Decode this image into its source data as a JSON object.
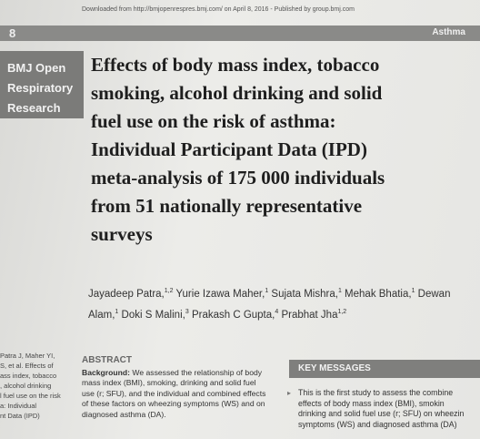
{
  "header": {
    "download_note": "Downloaded from http://bmjopenrespres.bmj.com/ on April 8, 2016 - Published by group.bmj.com",
    "logo": "8",
    "section": "Asthma"
  },
  "journal": {
    "lines": [
      "BMJ Open",
      "Respiratory",
      "Research"
    ]
  },
  "title": {
    "lines": [
      "Effects of body mass index, tobacco",
      "smoking, alcohol drinking and solid",
      "fuel use on the risk of asthma:",
      "Individual Participant Data (IPD)",
      "meta-analysis of 175 000 individuals",
      "from 51 nationally representative",
      "surveys"
    ]
  },
  "authors": [
    {
      "name": "Jayadeep Patra,",
      "sup": "1,2"
    },
    {
      "name": "Yurie Izawa Maher,",
      "sup": "1"
    },
    {
      "name": "Sujata Mishra,",
      "sup": "1"
    },
    {
      "name": "Mehak Bhatia,",
      "sup": "1"
    },
    {
      "name": "Dewan Alam,",
      "sup": "1"
    },
    {
      "name": "Doki S Malini,",
      "sup": "3"
    },
    {
      "name": "Prakash C Gupta,",
      "sup": "4"
    },
    {
      "name": "Prabhat Jha",
      "sup": "1,2"
    }
  ],
  "citation": {
    "lines": [
      "Patra J, Maher YI,",
      "S, et al. Effects of",
      "ass index, tobacco",
      ", alcohol drinking",
      "l fuel use on the risk",
      "a: Individual",
      "nt Data (IPD)"
    ]
  },
  "abstract": {
    "heading": "ABSTRACT",
    "label": "Background:",
    "lines": [
      "We assessed the relationship of body",
      "mass index (BMI), smoking, drinking and solid fuel",
      "use (r; SFU), and the individual and combined effects",
      "of these factors on wheezing symptoms (WS) and on",
      "diagnosed asthma (DA)."
    ]
  },
  "key_messages": {
    "heading": "KEY MESSAGES",
    "lines": [
      "This is the first study to assess the combine",
      "effects of body mass index (BMI), smokin",
      "drinking and solid fuel use (r; SFU) on wheezin",
      "symptoms (WS) and diagnosed asthma (DA)"
    ]
  }
}
